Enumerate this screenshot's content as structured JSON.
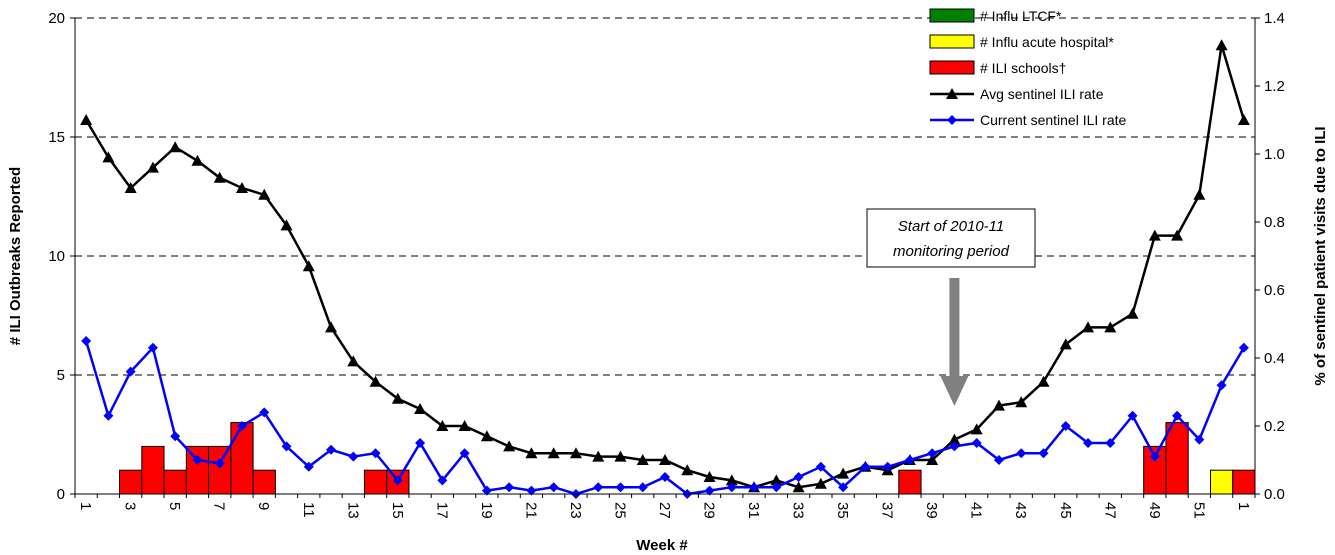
{
  "chart_data": {
    "type": "bar",
    "xlabel": "Week #",
    "ylabel_left": "# ILI Outbreaks Reported",
    "ylabel_right": "% of sentinel patient visits due to ILI",
    "ylim_left": [
      0,
      20
    ],
    "ylim_right": [
      0,
      1.4
    ],
    "yticks_left": [
      "0",
      "5",
      "10",
      "15",
      "20"
    ],
    "yticks_right": [
      "0.0",
      "0.2",
      "0.4",
      "0.6",
      "0.8",
      "1.0",
      "1.2",
      "1.4"
    ],
    "grid": "horizontal dashed",
    "legend_position": "top-right",
    "x_ticks": [
      "1",
      "3",
      "5",
      "7",
      "9",
      "11",
      "13",
      "15",
      "17",
      "19",
      "21",
      "23",
      "25",
      "27",
      "29",
      "31",
      "33",
      "35",
      "37",
      "39",
      "41",
      "43",
      "45",
      "47",
      "49",
      "51",
      "1"
    ],
    "weeks": [
      "1",
      "2",
      "3",
      "4",
      "5",
      "6",
      "7",
      "8",
      "9",
      "10",
      "11",
      "12",
      "13",
      "14",
      "15",
      "16",
      "17",
      "18",
      "19",
      "20",
      "21",
      "22",
      "23",
      "24",
      "25",
      "26",
      "27",
      "28",
      "29",
      "30",
      "31",
      "32",
      "33",
      "34",
      "35",
      "36",
      "37",
      "38",
      "39",
      "40",
      "41",
      "42",
      "43",
      "44",
      "45",
      "46",
      "47",
      "48",
      "49",
      "50",
      "51",
      "52",
      "1"
    ],
    "series": [
      {
        "name": "# Influ LTCF*",
        "kind": "bar",
        "axis": "left",
        "color": "#008000",
        "values": [
          0,
          0,
          0,
          0,
          0,
          0,
          0,
          0,
          0,
          0,
          0,
          0,
          0,
          0,
          0,
          0,
          0,
          0,
          0,
          0,
          0,
          0,
          0,
          0,
          0,
          0,
          0,
          0,
          0,
          0,
          0,
          0,
          0,
          0,
          0,
          0,
          0,
          0,
          0,
          0,
          0,
          0,
          0,
          0,
          0,
          0,
          0,
          0,
          0,
          0,
          0,
          0,
          0
        ]
      },
      {
        "name": "# Influ acute hospital*",
        "kind": "bar",
        "axis": "left",
        "color": "#ffff00",
        "values": [
          0,
          0,
          0,
          0,
          0,
          0,
          0,
          0,
          0,
          0,
          0,
          0,
          0,
          0,
          0,
          0,
          0,
          0,
          0,
          0,
          0,
          0,
          0,
          0,
          0,
          0,
          0,
          0,
          0,
          0,
          0,
          0,
          0,
          0,
          0,
          0,
          0,
          0,
          0,
          0,
          0,
          0,
          0,
          0,
          0,
          0,
          0,
          0,
          0,
          0,
          0,
          1,
          0
        ]
      },
      {
        "name": "# ILI schools†",
        "kind": "bar",
        "axis": "left",
        "color": "#ff0000",
        "values": [
          0,
          0,
          1,
          2,
          1,
          2,
          2,
          3,
          1,
          0,
          0,
          0,
          0,
          1,
          1,
          0,
          0,
          0,
          0,
          0,
          0,
          0,
          0,
          0,
          0,
          0,
          0,
          0,
          0,
          0,
          0,
          0,
          0,
          0,
          0,
          0,
          0,
          1,
          0,
          0,
          0,
          0,
          0,
          0,
          0,
          0,
          0,
          0,
          2,
          3,
          0,
          0,
          1
        ]
      },
      {
        "name": "Avg sentinel ILI rate",
        "kind": "line",
        "axis": "right",
        "color": "#000000",
        "marker": "triangle",
        "values": [
          1.1,
          0.99,
          0.9,
          0.96,
          1.02,
          0.98,
          0.93,
          0.9,
          0.88,
          0.79,
          0.67,
          0.49,
          0.39,
          0.33,
          0.28,
          0.25,
          0.2,
          0.2,
          0.17,
          0.14,
          0.12,
          0.12,
          0.12,
          0.11,
          0.11,
          0.1,
          0.1,
          0.07,
          0.05,
          0.04,
          0.02,
          0.04,
          0.02,
          0.03,
          0.06,
          0.08,
          0.07,
          0.1,
          0.1,
          0.16,
          0.19,
          0.26,
          0.27,
          0.33,
          0.44,
          0.49,
          0.49,
          0.53,
          0.76,
          0.76,
          0.88,
          1.32,
          1.1
        ]
      },
      {
        "name": "Current sentinel ILI rate",
        "kind": "line",
        "axis": "right",
        "color": "#0000ff",
        "marker": "diamond",
        "values": [
          0.45,
          0.23,
          0.36,
          0.43,
          0.17,
          0.1,
          0.09,
          0.2,
          0.24,
          0.14,
          0.08,
          0.13,
          0.11,
          0.12,
          0.04,
          0.15,
          0.04,
          0.12,
          0.01,
          0.02,
          0.01,
          0.02,
          0.0,
          0.02,
          0.02,
          0.02,
          0.05,
          0.0,
          0.01,
          0.02,
          0.02,
          0.02,
          0.05,
          0.08,
          0.02,
          0.08,
          0.08,
          0.1,
          0.12,
          0.14,
          0.15,
          0.1,
          0.12,
          0.12,
          0.2,
          0.15,
          0.15,
          0.23,
          0.11,
          0.23,
          0.16,
          0.32,
          0.43
        ]
      }
    ],
    "annotation": {
      "lines": [
        "Start of 2010-11",
        "monitoring period"
      ],
      "arrow_at_week_index": 39
    }
  }
}
